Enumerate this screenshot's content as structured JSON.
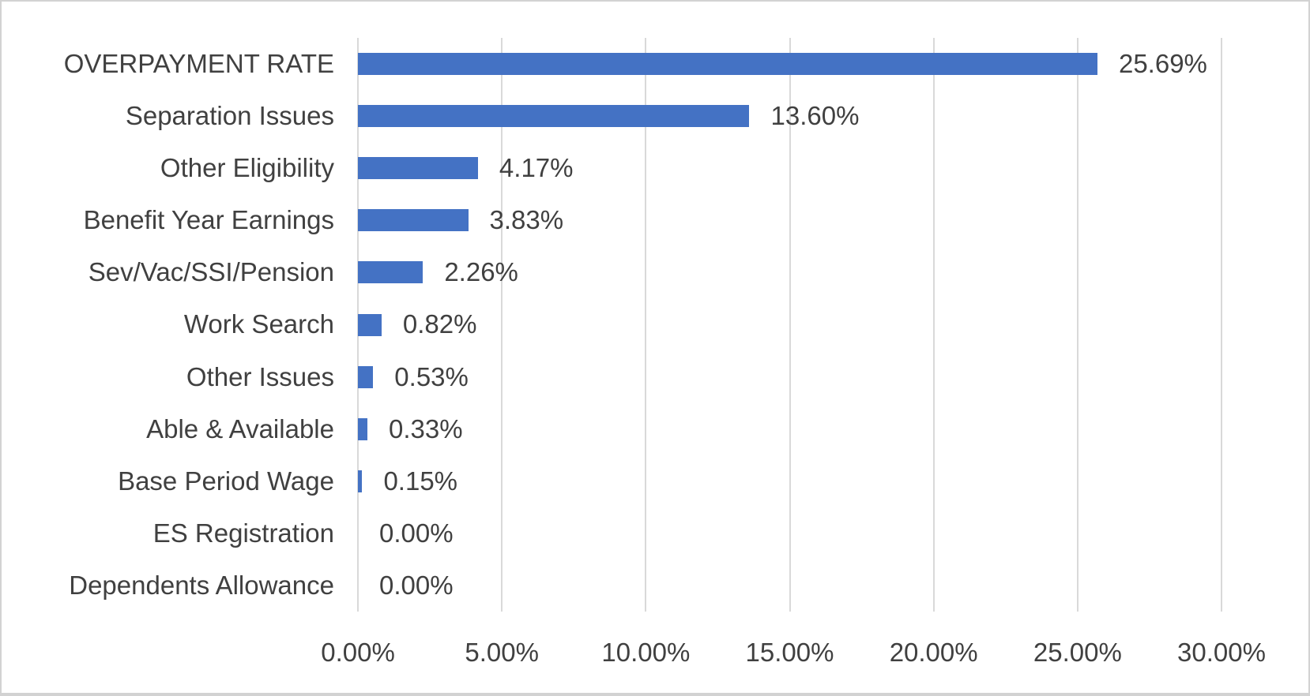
{
  "chart_data": {
    "type": "bar",
    "orientation": "horizontal",
    "title": "",
    "xlabel": "",
    "ylabel": "",
    "categories": [
      "OVERPAYMENT RATE",
      "Separation Issues",
      "Other Eligibility",
      "Benefit Year Earnings",
      "Sev/Vac/SSI/Pension",
      "Work Search",
      "Other Issues",
      "Able & Available",
      "Base Period Wage",
      "ES Registration",
      "Dependents Allowance"
    ],
    "values": [
      25.69,
      13.6,
      4.17,
      3.83,
      2.26,
      0.82,
      0.53,
      0.33,
      0.15,
      0.0,
      0.0
    ],
    "value_labels": [
      "25.69%",
      "13.60%",
      "4.17%",
      "3.83%",
      "2.26%",
      "0.82%",
      "0.53%",
      "0.33%",
      "0.15%",
      "0.00%",
      "0.00%"
    ],
    "x_tick_labels": [
      "0.00%",
      "5.00%",
      "10.00%",
      "15.00%",
      "20.00%",
      "25.00%",
      "30.00%"
    ],
    "x_tick_values": [
      0,
      5,
      10,
      15,
      20,
      25,
      30
    ],
    "xlim": [
      0,
      30
    ],
    "grid": "vertical",
    "legend": "none",
    "colors": {
      "bar": "#4472C4",
      "gridline": "#D9D9D9",
      "text": "#404040",
      "background": "#FFFFFF",
      "border": "#D2D2D2"
    }
  }
}
